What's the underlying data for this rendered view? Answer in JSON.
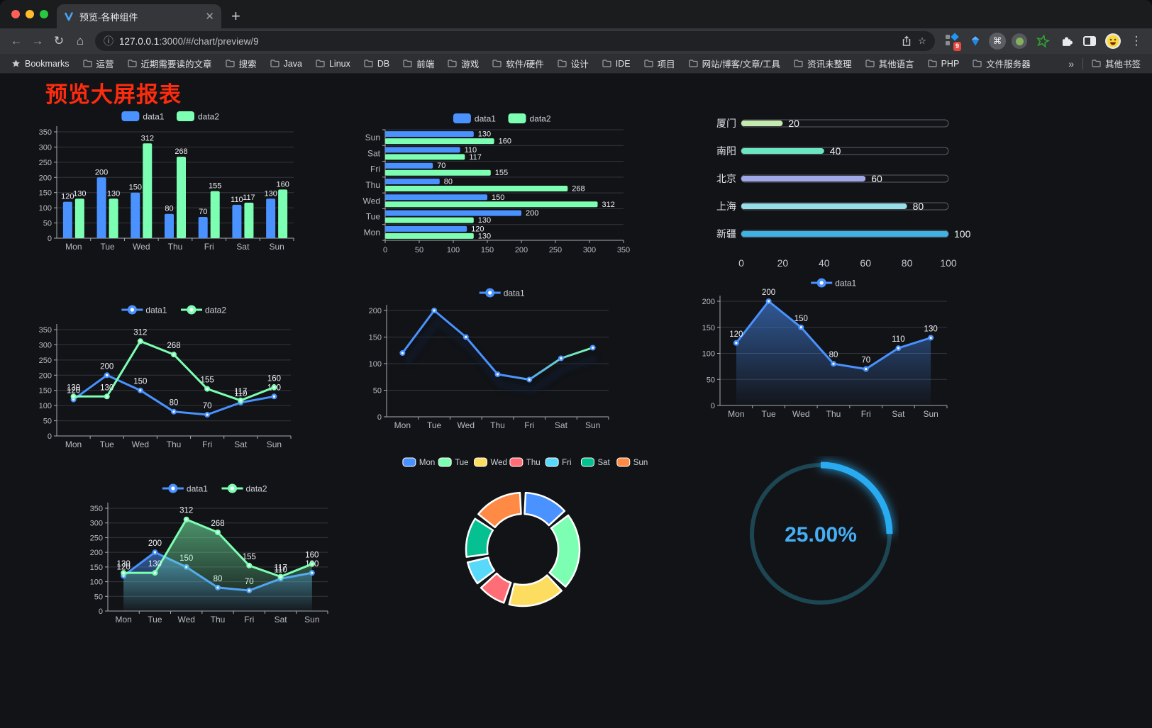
{
  "browser": {
    "tab_title": "预览-各种组件",
    "url_host": "127.0.0.1",
    "url_rest": ":3000/#/chart/preview/9",
    "extensions_badge": "9",
    "bookmarks": [
      {
        "icon": "star",
        "label": "Bookmarks"
      },
      {
        "icon": "folder",
        "label": "运营"
      },
      {
        "icon": "folder",
        "label": "近期需要读的文章"
      },
      {
        "icon": "folder",
        "label": "搜索"
      },
      {
        "icon": "folder",
        "label": "Java"
      },
      {
        "icon": "folder",
        "label": "Linux"
      },
      {
        "icon": "folder",
        "label": "DB"
      },
      {
        "icon": "folder",
        "label": "前端"
      },
      {
        "icon": "folder",
        "label": "游戏"
      },
      {
        "icon": "folder",
        "label": "软件/硬件"
      },
      {
        "icon": "folder",
        "label": "设计"
      },
      {
        "icon": "folder",
        "label": "IDE"
      },
      {
        "icon": "folder",
        "label": "项目"
      },
      {
        "icon": "folder",
        "label": "网站/博客/文章/工具"
      },
      {
        "icon": "folder",
        "label": "资讯未整理"
      },
      {
        "icon": "folder",
        "label": "其他语言"
      },
      {
        "icon": "folder",
        "label": "PHP"
      },
      {
        "icon": "folder",
        "label": "文件服务器"
      }
    ],
    "bookmarks_overflow": "»",
    "other_bookmarks": "其他书签"
  },
  "page": {
    "title": "预览大屏报表",
    "title_color": "#fe2c0e",
    "background": "#121316"
  },
  "chart_data": [
    {
      "id": "bar-grouped",
      "kind": "vbar",
      "type": "bar",
      "categories": [
        "Mon",
        "Tue",
        "Wed",
        "Thu",
        "Fri",
        "Sat",
        "Sun"
      ],
      "series": [
        {
          "name": "data1",
          "color": "#4992ff",
          "values": [
            120,
            200,
            150,
            80,
            70,
            110,
            130
          ]
        },
        {
          "name": "data2",
          "color": "#7cffb2",
          "values": [
            130,
            130,
            312,
            268,
            155,
            117,
            160
          ]
        }
      ],
      "ymax": 350,
      "ystep": 50
    },
    {
      "id": "bar-horizontal",
      "kind": "hbar",
      "type": "bar",
      "categories": [
        "Mon",
        "Tue",
        "Wed",
        "Thu",
        "Fri",
        "Sat",
        "Sun"
      ],
      "series": [
        {
          "name": "data1",
          "color": "#4992ff",
          "values": [
            120,
            200,
            150,
            80,
            70,
            110,
            130
          ]
        },
        {
          "name": "data2",
          "color": "#7cffb2",
          "values": [
            130,
            130,
            312,
            268,
            155,
            117,
            160
          ]
        }
      ],
      "xmax": 350,
      "xstep": 50
    },
    {
      "id": "city-progress",
      "kind": "progress",
      "type": "bar",
      "items": [
        {
          "label": "厦门",
          "value": 20,
          "color": "#c4ebad"
        },
        {
          "label": "南阳",
          "value": 40,
          "color": "#6be6c1"
        },
        {
          "label": "北京",
          "value": 60,
          "color": "#a0a7e6"
        },
        {
          "label": "上海",
          "value": 80,
          "color": "#96dee8"
        },
        {
          "label": "新疆",
          "value": 100,
          "color": "#3fb1e3"
        }
      ],
      "max": 100,
      "ticks": [
        0,
        20,
        40,
        60,
        80,
        100
      ]
    },
    {
      "id": "line-dual",
      "kind": "line",
      "type": "line",
      "categories": [
        "Mon",
        "Tue",
        "Wed",
        "Thu",
        "Fri",
        "Sat",
        "Sun"
      ],
      "series": [
        {
          "name": "data1",
          "color": "#4992ff",
          "values": [
            120,
            200,
            150,
            80,
            70,
            110,
            130
          ]
        },
        {
          "name": "data2",
          "color": "#7cffb2",
          "values": [
            130,
            130,
            312,
            268,
            155,
            117,
            160
          ]
        }
      ],
      "ymax": 350,
      "ystep": 50,
      "labels": true
    },
    {
      "id": "line-gradient",
      "kind": "line",
      "type": "line",
      "categories": [
        "Mon",
        "Tue",
        "Wed",
        "Thu",
        "Fri",
        "Sat",
        "Sun"
      ],
      "series": [
        {
          "name": "data1",
          "gradient": [
            "#4992ff",
            "#7cffb2"
          ],
          "values": [
            120,
            200,
            150,
            80,
            70,
            110,
            130
          ]
        }
      ],
      "ymax": 200,
      "ystep": 50,
      "labels": false,
      "shadow": true
    },
    {
      "id": "line-area",
      "kind": "line",
      "type": "area",
      "categories": [
        "Mon",
        "Tue",
        "Wed",
        "Thu",
        "Fri",
        "Sat",
        "Sun"
      ],
      "series": [
        {
          "name": "data1",
          "color": "#4992ff",
          "area": true,
          "values": [
            120,
            200,
            150,
            80,
            70,
            110,
            130
          ]
        }
      ],
      "ymax": 200,
      "ystep": 50,
      "labels": true
    },
    {
      "id": "line-area-dual",
      "kind": "line",
      "type": "area",
      "categories": [
        "Mon",
        "Tue",
        "Wed",
        "Thu",
        "Fri",
        "Sat",
        "Sun"
      ],
      "series": [
        {
          "name": "data1",
          "color": "#4992ff",
          "area": true,
          "values": [
            120,
            200,
            150,
            80,
            70,
            110,
            130
          ]
        },
        {
          "name": "data2",
          "color": "#7cffb2",
          "area": true,
          "values": [
            130,
            130,
            312,
            268,
            155,
            117,
            160
          ]
        }
      ],
      "ymax": 350,
      "ystep": 50,
      "labels": true
    },
    {
      "id": "week-donut",
      "kind": "donut",
      "type": "pie",
      "items": [
        {
          "label": "Mon",
          "value": 120,
          "color": "#4992ff"
        },
        {
          "label": "Tue",
          "value": 200,
          "color": "#7cffb2"
        },
        {
          "label": "Wed",
          "value": 150,
          "color": "#fddd60"
        },
        {
          "label": "Thu",
          "value": 80,
          "color": "#ff6e76"
        },
        {
          "label": "Fri",
          "value": 70,
          "color": "#58d9f9"
        },
        {
          "label": "Sat",
          "value": 110,
          "color": "#05c091"
        },
        {
          "label": "Sun",
          "value": 130,
          "color": "#ff8a45"
        }
      ]
    },
    {
      "id": "gauge",
      "kind": "gauge",
      "type": "pie",
      "value": 25,
      "display": "25.00%",
      "color": "#29abf2",
      "track": "#1c4652",
      "text_color": "#45aef5"
    }
  ]
}
